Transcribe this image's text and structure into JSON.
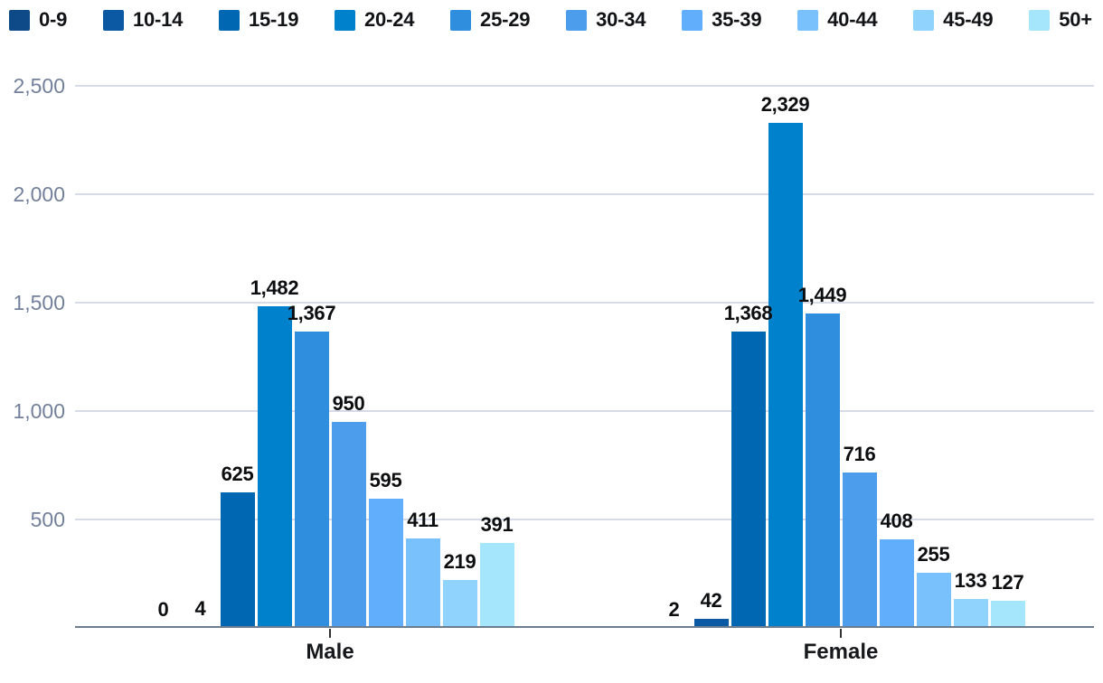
{
  "legend": {
    "items": [
      {
        "label": "0-9",
        "color": "#0E4A88"
      },
      {
        "label": "10-14",
        "color": "#0B59A2"
      },
      {
        "label": "15-19",
        "color": "#0068B3"
      },
      {
        "label": "20-24",
        "color": "#0081CC"
      },
      {
        "label": "25-29",
        "color": "#2F8EDE"
      },
      {
        "label": "30-34",
        "color": "#4C9DEB"
      },
      {
        "label": "35-39",
        "color": "#60AEFC"
      },
      {
        "label": "40-44",
        "color": "#79C1FD"
      },
      {
        "label": "45-49",
        "color": "#90D3FC"
      },
      {
        "label": "50+",
        "color": "#A6E6FD"
      }
    ]
  },
  "chart_data": {
    "type": "bar",
    "title": "",
    "categories": [
      "Male",
      "Female"
    ],
    "series": [
      {
        "name": "0-9",
        "color": "#0E4A88",
        "values": [
          0,
          2
        ],
        "labels": [
          "0",
          "2"
        ]
      },
      {
        "name": "10-14",
        "color": "#0B59A2",
        "values": [
          4,
          42
        ],
        "labels": [
          "4",
          "42"
        ]
      },
      {
        "name": "15-19",
        "color": "#0068B3",
        "values": [
          625,
          1368
        ],
        "labels": [
          "625",
          "1,368"
        ]
      },
      {
        "name": "20-24",
        "color": "#0081CC",
        "values": [
          1482,
          2329
        ],
        "labels": [
          "1,482",
          "2,329"
        ]
      },
      {
        "name": "25-29",
        "color": "#2F8EDE",
        "values": [
          1367,
          1449
        ],
        "labels": [
          "1,367",
          "1,449"
        ]
      },
      {
        "name": "30-34",
        "color": "#4C9DEB",
        "values": [
          950,
          716
        ],
        "labels": [
          "950",
          "716"
        ]
      },
      {
        "name": "35-39",
        "color": "#60AEFC",
        "values": [
          595,
          408
        ],
        "labels": [
          "595",
          "408"
        ]
      },
      {
        "name": "40-44",
        "color": "#79C1FD",
        "values": [
          411,
          255
        ],
        "labels": [
          "411",
          "255"
        ]
      },
      {
        "name": "45-49",
        "color": "#90D3FC",
        "values": [
          219,
          133
        ],
        "labels": [
          "219",
          "133"
        ]
      },
      {
        "name": "50+",
        "color": "#A6E6FD",
        "values": [
          391,
          127
        ],
        "labels": [
          "391",
          "127"
        ]
      }
    ],
    "xlabel": "",
    "ylabel": "",
    "ylim": [
      0,
      2500
    ],
    "ytick_values": [
      500,
      1000,
      1500,
      2000,
      2500
    ],
    "ytick_labels": [
      "500",
      "1,000",
      "1,500",
      "2,000",
      "2,500"
    ],
    "grid": true,
    "legend_position": "top",
    "value_labels": true,
    "colors": {
      "background": "#FFFFFF",
      "grid_line": "#D6DBE7",
      "axis_line": "#6E7C90",
      "tick_mark": "#2F3133",
      "y_tick_text": "#72809B",
      "value_text": "#0D0E10",
      "category_text": "#17181B",
      "legend_text": "#121316"
    }
  }
}
